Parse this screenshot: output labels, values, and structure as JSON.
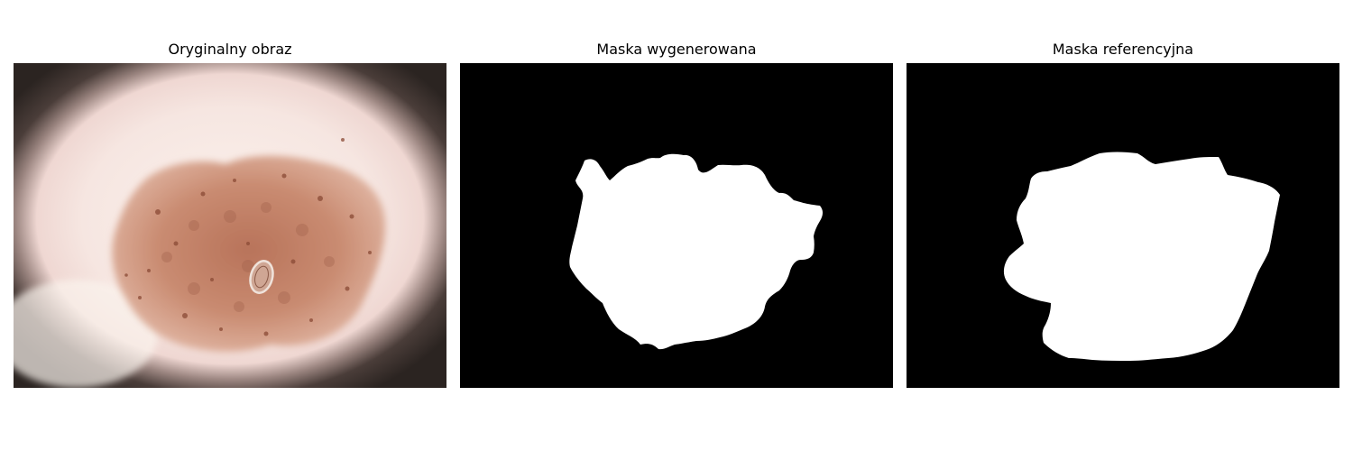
{
  "panels": [
    {
      "title": "Oryginalny obraz"
    },
    {
      "title": "Maska wygenerowana"
    },
    {
      "title": "Maska referencyjna"
    }
  ],
  "colors": {
    "background": "#ffffff",
    "mask_background": "#000000",
    "mask_foreground": "#ffffff",
    "skin": "#f4e6df",
    "lesion": "#c8876c",
    "vignette": "#3a302c"
  }
}
